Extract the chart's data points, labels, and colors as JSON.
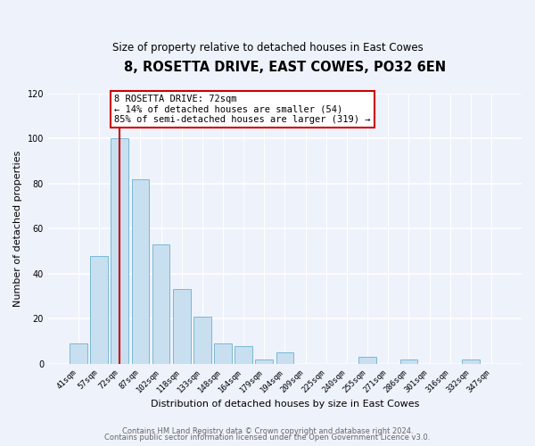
{
  "title": "8, ROSETTA DRIVE, EAST COWES, PO32 6EN",
  "subtitle": "Size of property relative to detached houses in East Cowes",
  "xlabel": "Distribution of detached houses by size in East Cowes",
  "ylabel": "Number of detached properties",
  "bar_labels": [
    "41sqm",
    "57sqm",
    "72sqm",
    "87sqm",
    "102sqm",
    "118sqm",
    "133sqm",
    "148sqm",
    "164sqm",
    "179sqm",
    "194sqm",
    "209sqm",
    "225sqm",
    "240sqm",
    "255sqm",
    "271sqm",
    "286sqm",
    "301sqm",
    "316sqm",
    "332sqm",
    "347sqm"
  ],
  "bar_values": [
    9,
    48,
    100,
    82,
    53,
    33,
    21,
    9,
    8,
    2,
    5,
    0,
    0,
    0,
    3,
    0,
    2,
    0,
    0,
    2,
    0
  ],
  "bar_color": "#c8dff0",
  "bar_edge_color": "#7ab8d4",
  "highlight_index": 2,
  "highlight_line_color": "#cc0000",
  "ylim": [
    0,
    120
  ],
  "yticks": [
    0,
    20,
    40,
    60,
    80,
    100,
    120
  ],
  "annotation_title": "8 ROSETTA DRIVE: 72sqm",
  "annotation_line1": "← 14% of detached houses are smaller (54)",
  "annotation_line2": "85% of semi-detached houses are larger (319) →",
  "annotation_box_color": "#ffffff",
  "annotation_box_edge": "#cc0000",
  "footer_line1": "Contains HM Land Registry data © Crown copyright and database right 2024.",
  "footer_line2": "Contains public sector information licensed under the Open Government Licence v3.0.",
  "background_color": "#eef2fb",
  "plot_background": "#eef2fb",
  "grid_color": "#ffffff"
}
